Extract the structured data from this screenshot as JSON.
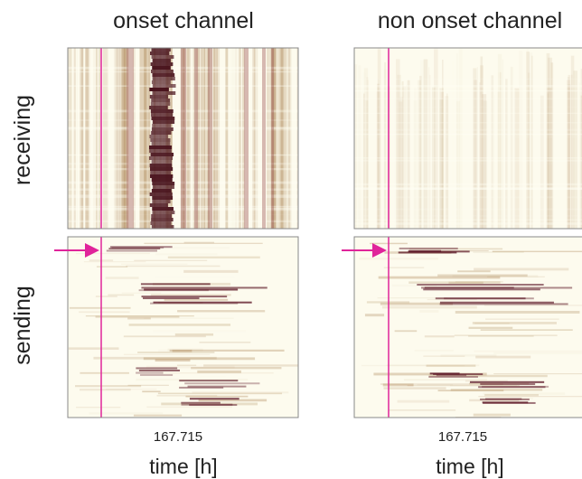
{
  "columns": [
    {
      "title": "onset channel",
      "tick": "167.715",
      "xlabel": "time [h]"
    },
    {
      "title": "non onset channel",
      "tick": "167.715",
      "xlabel": "time [h]"
    }
  ],
  "rows": [
    "receiving",
    "sending"
  ]
}
